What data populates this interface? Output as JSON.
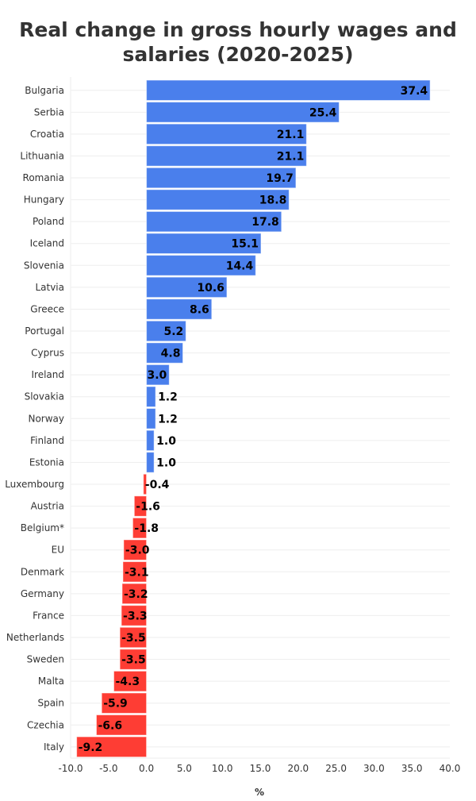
{
  "chart_data": {
    "type": "bar",
    "orientation": "horizontal",
    "title": "Real change in gross hourly wages and salaries (2020-2025)",
    "xlabel": "%",
    "ylabel": "",
    "xlim": [
      -10,
      40
    ],
    "xticks": [
      "-10.0",
      "-5.0",
      "0.0",
      "5.0",
      "10.0",
      "15.0",
      "20.0",
      "25.0",
      "30.0",
      "35.0",
      "40.0"
    ],
    "grid": true,
    "colors": {
      "positive": "#4a7fec",
      "negative": "#fe3d34"
    },
    "categories": [
      "Bulgaria",
      "Serbia",
      "Croatia",
      "Lithuania",
      "Romania",
      "Hungary",
      "Poland",
      "Iceland",
      "Slovenia",
      "Latvia",
      "Greece",
      "Portugal",
      "Cyprus",
      "Ireland",
      "Slovakia",
      "Norway",
      "Finland",
      "Estonia",
      "Luxembourg",
      "Austria",
      "Belgium*",
      "EU",
      "Denmark",
      "Germany",
      "France",
      "Netherlands",
      "Sweden",
      "Malta",
      "Spain",
      "Czechia",
      "Italy"
    ],
    "values": [
      37.4,
      25.4,
      21.1,
      21.1,
      19.7,
      18.8,
      17.8,
      15.1,
      14.4,
      10.6,
      8.6,
      5.2,
      4.8,
      3.0,
      1.2,
      1.2,
      1.0,
      1.0,
      -0.4,
      -1.6,
      -1.8,
      -3.0,
      -3.1,
      -3.2,
      -3.3,
      -3.5,
      -3.5,
      -4.3,
      -5.9,
      -6.6,
      -9.2
    ]
  }
}
